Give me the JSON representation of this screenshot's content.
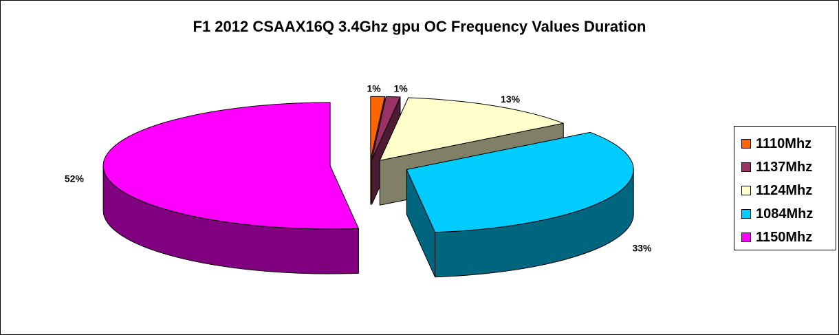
{
  "chart_data": {
    "type": "pie",
    "title": "F1 2012 CSAAX16Q 3.4Ghz gpu OC Frequency Values Duration",
    "categories": [
      "1110Mhz",
      "1137Mhz",
      "1124Mhz",
      "1084Mhz",
      "1150Mhz"
    ],
    "values": [
      1,
      1,
      13,
      33,
      52
    ],
    "data_labels": [
      "1%",
      "1%",
      "13%",
      "33%",
      "52%"
    ],
    "colors": [
      "#ff6600",
      "#993366",
      "#ffffcc",
      "#00ccff",
      "#ff00ff"
    ],
    "side_colors": [
      "#7f3300",
      "#4c1a33",
      "#808066",
      "#006680",
      "#800080"
    ],
    "exploded": true,
    "three_d": true,
    "legend_position": "right"
  }
}
